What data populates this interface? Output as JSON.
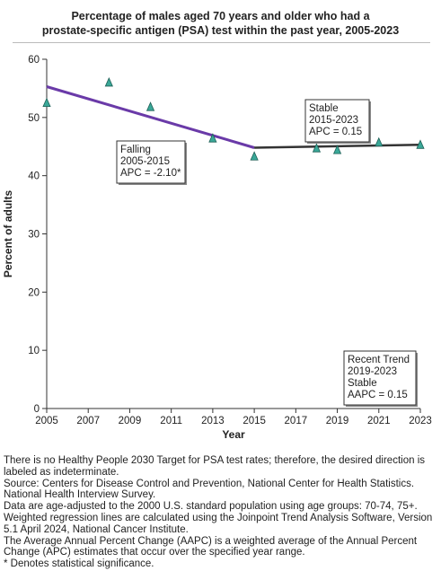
{
  "chart_data": {
    "type": "scatter",
    "title": [
      "Percentage of males aged 70 years and older who had a",
      "prostate-specific antigen (PSA) test within the past year, 2005-2023"
    ],
    "xlabel": "Year",
    "ylabel": "Percent of adults",
    "xlim": [
      2005,
      2023
    ],
    "ylim": [
      0,
      60
    ],
    "xticks": [
      2005,
      2007,
      2009,
      2011,
      2013,
      2015,
      2017,
      2019,
      2021,
      2023
    ],
    "yticks": [
      0,
      10,
      20,
      30,
      40,
      50,
      60
    ],
    "grid": false,
    "points": {
      "x": [
        2005,
        2008,
        2010,
        2013,
        2015,
        2018,
        2019,
        2021,
        2023
      ],
      "y": [
        52.5,
        56.0,
        51.8,
        46.4,
        43.3,
        44.7,
        44.4,
        45.7,
        45.3
      ],
      "marker": "triangle",
      "color": "#3aa898"
    },
    "series": [
      {
        "values": [
          [
            2005,
            55.3
          ],
          [
            2015,
            44.8
          ]
        ],
        "color": "#6a3aa8"
      },
      {
        "values": [
          [
            2015,
            44.8
          ],
          [
            2023,
            45.3
          ]
        ],
        "color": "#333333"
      }
    ],
    "annotations": [
      {
        "lines": [
          "Falling",
          "2005-2015",
          "APC = -2.10*"
        ]
      },
      {
        "lines": [
          "Stable",
          "2015-2023",
          "APC =  0.15"
        ]
      },
      {
        "lines": [
          "Recent Trend",
          "2019-2023",
          "Stable",
          "AAPC =  0.15"
        ]
      }
    ]
  },
  "notes": [
    "There is no Healthy People 2030 Target for PSA test rates; therefore, the desired direction is labeled as indeterminate.",
    "Source: Centers for Disease Control and Prevention, National Center for Health Statistics. National Health Interview Survey.",
    "Data are age-adjusted to the 2000 U.S. standard population using age groups: 70-74, 75+.",
    "Weighted regression lines are calculated using the Joinpoint Trend Analysis Software, Version 5.1 April 2024, National Cancer Institute.",
    "The Average Annual Percent Change (AAPC) is a weighted average of the Annual Percent Change (APC) estimates that occur over the specified year range.",
    "* Denotes statistical significance."
  ]
}
